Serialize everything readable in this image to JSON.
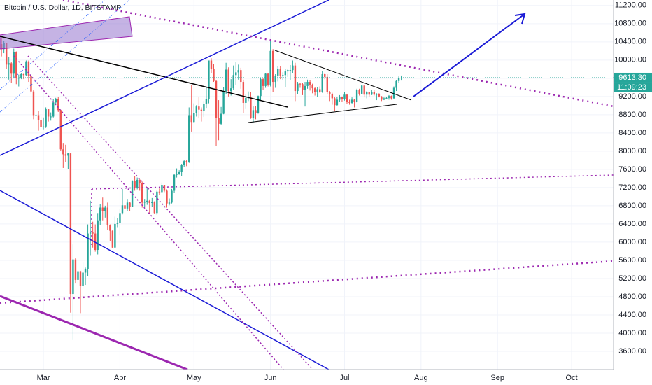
{
  "chart_data": {
    "type": "candlestick",
    "title": "Bitcoin / U.S. Dollar, 1D, BITSTAMP",
    "up_color": "#26a69a",
    "down_color": "#ef5350",
    "grid": true,
    "xlim": [
      43.4,
      292
    ],
    "ylim": [
      3200,
      11320
    ],
    "xticks": [
      {
        "value": 61,
        "label": "Mar"
      },
      {
        "value": 92,
        "label": "Apr"
      },
      {
        "value": 122,
        "label": "May"
      },
      {
        "value": 153,
        "label": "Jun"
      },
      {
        "value": 183,
        "label": "Jul"
      },
      {
        "value": 214,
        "label": "Aug"
      },
      {
        "value": 245,
        "label": "Sep"
      },
      {
        "value": 275,
        "label": "Oct"
      }
    ],
    "yticks": [
      {
        "value": 3600,
        "label": "3600.00"
      },
      {
        "value": 4000,
        "label": "4000.00"
      },
      {
        "value": 4400,
        "label": "4400.00"
      },
      {
        "value": 4800,
        "label": "4800.00"
      },
      {
        "value": 5200,
        "label": "5200.00"
      },
      {
        "value": 5600,
        "label": "5600.00"
      },
      {
        "value": 6000,
        "label": "6000.00"
      },
      {
        "value": 6400,
        "label": "6400.00"
      },
      {
        "value": 6800,
        "label": "6800.00"
      },
      {
        "value": 7200,
        "label": "7200.00"
      },
      {
        "value": 7600,
        "label": "7600.00"
      },
      {
        "value": 8000,
        "label": "8000.00"
      },
      {
        "value": 8400,
        "label": "8400.00"
      },
      {
        "value": 8800,
        "label": "8800.00"
      },
      {
        "value": 9200,
        "label": "9200.00"
      },
      {
        "value": 9600,
        "label": "9600.00"
      },
      {
        "value": 10000,
        "label": "10000.00"
      },
      {
        "value": 10400,
        "label": "10400.00"
      },
      {
        "value": 10800,
        "label": "10800.00"
      },
      {
        "value": 11200,
        "label": "11200.00"
      }
    ],
    "last_price_label": "9613.30",
    "countdown": "11:09:23",
    "x": [
      44,
      45,
      46,
      47,
      48,
      49,
      50,
      51,
      52,
      53,
      54,
      55,
      56,
      57,
      58,
      59,
      60,
      61,
      62,
      63,
      64,
      65,
      66,
      67,
      68,
      69,
      70,
      71,
      72,
      73,
      74,
      75,
      76,
      77,
      78,
      79,
      80,
      81,
      82,
      83,
      84,
      85,
      86,
      87,
      88,
      89,
      90,
      91,
      92,
      93,
      94,
      95,
      96,
      97,
      98,
      99,
      100,
      101,
      102,
      103,
      104,
      105,
      106,
      107,
      108,
      109,
      110,
      111,
      112,
      113,
      114,
      115,
      116,
      117,
      118,
      119,
      120,
      121,
      122,
      123,
      124,
      125,
      126,
      127,
      128,
      129,
      130,
      131,
      132,
      133,
      134,
      135,
      136,
      137,
      138,
      139,
      140,
      141,
      142,
      143,
      144,
      145,
      146,
      147,
      148,
      149,
      150,
      151,
      152,
      153,
      154,
      155,
      156,
      157,
      158,
      159,
      160,
      161,
      162,
      163,
      164,
      165,
      166,
      167,
      168,
      169,
      170,
      171,
      172,
      173,
      174,
      175,
      176,
      177,
      178,
      179,
      180,
      181,
      182,
      183,
      184,
      185,
      186,
      187,
      188,
      189,
      190,
      191,
      192,
      193,
      194,
      195,
      196,
      197,
      198,
      199,
      200,
      201,
      202,
      203,
      204,
      205,
      206
    ],
    "ohlc": [
      [
        10350,
        10480,
        10080,
        10240
      ],
      [
        10240,
        10420,
        10150,
        10370
      ],
      [
        10370,
        10380,
        9800,
        9900
      ],
      [
        9900,
        10060,
        9570,
        9930
      ],
      [
        9930,
        9960,
        9500,
        9700
      ],
      [
        9700,
        10250,
        9600,
        10180
      ],
      [
        10180,
        10190,
        9470,
        9600
      ],
      [
        9600,
        9680,
        9420,
        9610
      ],
      [
        9610,
        9720,
        9580,
        9690
      ],
      [
        9690,
        9700,
        9580,
        9670
      ],
      [
        9670,
        9990,
        9650,
        9970
      ],
      [
        9970,
        9990,
        9520,
        9650
      ],
      [
        9650,
        9660,
        9260,
        9310
      ],
      [
        9310,
        9340,
        8700,
        8790
      ],
      [
        8790,
        8980,
        8540,
        8790
      ],
      [
        8790,
        8890,
        8450,
        8680
      ],
      [
        8680,
        8760,
        8520,
        8530
      ],
      [
        8530,
        8740,
        8480,
        8540
      ],
      [
        8540,
        8960,
        8510,
        8920
      ],
      [
        8920,
        8920,
        8650,
        8760
      ],
      [
        8760,
        8850,
        8670,
        8760
      ],
      [
        8760,
        9140,
        8740,
        9070
      ],
      [
        9070,
        9170,
        9010,
        9150
      ],
      [
        9150,
        9190,
        8860,
        8900
      ],
      [
        8900,
        8910,
        8010,
        8040
      ],
      [
        8040,
        8180,
        7630,
        7930
      ],
      [
        7930,
        8140,
        7760,
        7900
      ],
      [
        7900,
        7960,
        7600,
        7950
      ],
      [
        7950,
        7960,
        4450,
        4860
      ],
      [
        4860,
        5950,
        3850,
        5620
      ],
      [
        5620,
        5660,
        5090,
        5170
      ],
      [
        5170,
        5380,
        5100,
        5360
      ],
      [
        5360,
        5370,
        4440,
        5030
      ],
      [
        5030,
        5550,
        4980,
        5330
      ],
      [
        5330,
        5440,
        5060,
        5410
      ],
      [
        5410,
        6390,
        5250,
        6190
      ],
      [
        6190,
        6910,
        5700,
        6210
      ],
      [
        6210,
        6450,
        5880,
        6190
      ],
      [
        6190,
        6390,
        5790,
        5830
      ],
      [
        5830,
        6640,
        5730,
        6480
      ],
      [
        6480,
        6840,
        6380,
        6760
      ],
      [
        6760,
        6980,
        6480,
        6690
      ],
      [
        6690,
        6800,
        6540,
        6760
      ],
      [
        6760,
        6870,
        6270,
        6370
      ],
      [
        6370,
        6390,
        6030,
        6250
      ],
      [
        6250,
        6260,
        5870,
        5880
      ],
      [
        5880,
        6560,
        5860,
        6400
      ],
      [
        6400,
        6530,
        6330,
        6420
      ],
      [
        6420,
        6720,
        6170,
        6640
      ],
      [
        6640,
        7170,
        6610,
        6810
      ],
      [
        6810,
        7010,
        6670,
        6740
      ],
      [
        6740,
        6950,
        6680,
        6870
      ],
      [
        6870,
        6880,
        6680,
        6780
      ],
      [
        6780,
        7360,
        6770,
        7340
      ],
      [
        7340,
        7460,
        7130,
        7200
      ],
      [
        7200,
        7420,
        7160,
        7370
      ],
      [
        7370,
        7380,
        7130,
        7300
      ],
      [
        7300,
        7330,
        6760,
        6870
      ],
      [
        6870,
        6950,
        6780,
        6890
      ],
      [
        6890,
        7190,
        6820,
        6910
      ],
      [
        6910,
        6940,
        6630,
        6860
      ],
      [
        6860,
        6970,
        6780,
        6880
      ],
      [
        6880,
        6900,
        6620,
        6640
      ],
      [
        6640,
        7140,
        6600,
        7110
      ],
      [
        7110,
        7180,
        7030,
        7100
      ],
      [
        7100,
        7310,
        7080,
        7260
      ],
      [
        7260,
        7260,
        7100,
        7130
      ],
      [
        7130,
        7160,
        6760,
        6850
      ],
      [
        6850,
        6960,
        6810,
        6870
      ],
      [
        6870,
        7170,
        6850,
        7130
      ],
      [
        7130,
        7500,
        7080,
        7480
      ],
      [
        7480,
        7620,
        7420,
        7500
      ],
      [
        7500,
        7580,
        7480,
        7550
      ],
      [
        7550,
        7720,
        7460,
        7700
      ],
      [
        7700,
        7800,
        7660,
        7780
      ],
      [
        7780,
        7810,
        7670,
        7760
      ],
      [
        7760,
        8960,
        7740,
        8790
      ],
      [
        8790,
        9450,
        8430,
        8640
      ],
      [
        8640,
        9050,
        8630,
        8830
      ],
      [
        8830,
        9010,
        8760,
        8980
      ],
      [
        8980,
        9190,
        8720,
        8910
      ],
      [
        8910,
        8960,
        8650,
        8890
      ],
      [
        8890,
        9100,
        8750,
        9030
      ],
      [
        9030,
        9390,
        8950,
        9150
      ],
      [
        9150,
        9990,
        9050,
        9990
      ],
      [
        9990,
        10040,
        9710,
        9810
      ],
      [
        9810,
        9920,
        9520,
        9540
      ],
      [
        9540,
        9560,
        8120,
        8730
      ],
      [
        8730,
        9120,
        8240,
        8600
      ],
      [
        8600,
        8970,
        8570,
        8820
      ],
      [
        8820,
        9400,
        8810,
        9320
      ],
      [
        9320,
        9940,
        9260,
        9790
      ],
      [
        9790,
        9840,
        9200,
        9320
      ],
      [
        9320,
        9580,
        9220,
        9380
      ],
      [
        9380,
        9880,
        9340,
        9670
      ],
      [
        9670,
        9960,
        9460,
        9730
      ],
      [
        9730,
        9900,
        9570,
        9780
      ],
      [
        9780,
        9830,
        9370,
        9520
      ],
      [
        9520,
        9570,
        8830,
        9060
      ],
      [
        9060,
        9260,
        8940,
        9170
      ],
      [
        9170,
        9310,
        9100,
        9180
      ],
      [
        9180,
        9300,
        8710,
        8720
      ],
      [
        8720,
        8980,
        8630,
        8900
      ],
      [
        8900,
        8990,
        8700,
        8840
      ],
      [
        8840,
        9220,
        8820,
        9210
      ],
      [
        9210,
        9600,
        9120,
        9580
      ],
      [
        9580,
        9610,
        9340,
        9430
      ],
      [
        9430,
        9720,
        9390,
        9700
      ],
      [
        9700,
        9720,
        9420,
        9460
      ],
      [
        9460,
        10420,
        9420,
        10200
      ],
      [
        10200,
        10240,
        9300,
        9520
      ],
      [
        9520,
        9690,
        9390,
        9660
      ],
      [
        9660,
        9870,
        9530,
        9800
      ],
      [
        9800,
        9860,
        9580,
        9660
      ],
      [
        9660,
        9730,
        9560,
        9670
      ],
      [
        9670,
        9800,
        9400,
        9750
      ],
      [
        9750,
        9800,
        9630,
        9780
      ],
      [
        9780,
        9890,
        9560,
        9780
      ],
      [
        9780,
        9990,
        9720,
        9880
      ],
      [
        9880,
        9940,
        9100,
        9320
      ],
      [
        9320,
        9520,
        9250,
        9480
      ],
      [
        9480,
        9500,
        9390,
        9470
      ],
      [
        9470,
        9490,
        9230,
        9340
      ],
      [
        9340,
        9520,
        8980,
        9430
      ],
      [
        9430,
        9570,
        9370,
        9520
      ],
      [
        9520,
        9560,
        9330,
        9460
      ],
      [
        9460,
        9480,
        9270,
        9380
      ],
      [
        9380,
        9400,
        9220,
        9300
      ],
      [
        9300,
        9400,
        9190,
        9360
      ],
      [
        9360,
        9420,
        9280,
        9290
      ],
      [
        9290,
        9760,
        9280,
        9690
      ],
      [
        9690,
        9700,
        9580,
        9630
      ],
      [
        9630,
        9690,
        9260,
        9300
      ],
      [
        9300,
        9320,
        9100,
        9250
      ],
      [
        9250,
        9280,
        9020,
        9160
      ],
      [
        9160,
        9190,
        8890,
        9010
      ],
      [
        9010,
        9190,
        9000,
        9130
      ],
      [
        9130,
        9230,
        9080,
        9190
      ],
      [
        9190,
        9200,
        9080,
        9140
      ],
      [
        9140,
        9300,
        9110,
        9240
      ],
      [
        9240,
        9260,
        9030,
        9090
      ],
      [
        9090,
        9130,
        9020,
        9060
      ],
      [
        9060,
        9180,
        9040,
        9130
      ],
      [
        9130,
        9150,
        8960,
        9080
      ],
      [
        9080,
        9370,
        9070,
        9350
      ],
      [
        9350,
        9370,
        9220,
        9260
      ],
      [
        9260,
        9460,
        9250,
        9440
      ],
      [
        9440,
        9450,
        9180,
        9240
      ],
      [
        9240,
        9320,
        9160,
        9290
      ],
      [
        9290,
        9300,
        9200,
        9240
      ],
      [
        9240,
        9340,
        9230,
        9300
      ],
      [
        9300,
        9340,
        9220,
        9240
      ],
      [
        9240,
        9270,
        9120,
        9260
      ],
      [
        9260,
        9270,
        9180,
        9200
      ],
      [
        9200,
        9210,
        9100,
        9130
      ],
      [
        9130,
        9180,
        9120,
        9160
      ],
      [
        9160,
        9190,
        9140,
        9170
      ],
      [
        9170,
        9230,
        9130,
        9210
      ],
      [
        9210,
        9220,
        9130,
        9160
      ],
      [
        9160,
        9420,
        9150,
        9390
      ],
      [
        9390,
        9560,
        9320,
        9540
      ],
      [
        9540,
        9640,
        9500,
        9610
      ],
      [
        9610,
        9660,
        9550,
        9613.3
      ]
    ]
  }
}
